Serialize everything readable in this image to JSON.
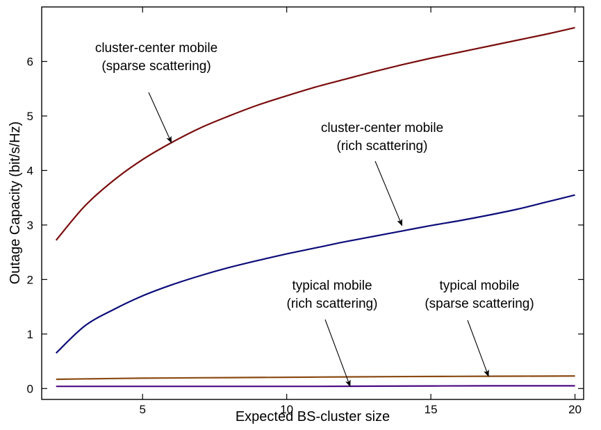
{
  "chart_data": {
    "type": "line",
    "title": "",
    "xlabel": "Expected BS-cluster size",
    "ylabel": "Outage Capacity (bit/s/Hz)",
    "xlim": [
      1.5,
      20.3
    ],
    "ylim": [
      -0.2,
      7.0
    ],
    "x_ticks": [
      5,
      10,
      15,
      20
    ],
    "y_ticks": [
      0,
      1,
      2,
      3,
      4,
      5,
      6
    ],
    "grid": false,
    "legend": "none",
    "series": [
      {
        "color": "#7a0c0c",
        "x": [
          2,
          3,
          4,
          5,
          6,
          7,
          8,
          9,
          10,
          11,
          12,
          13,
          14,
          15,
          16,
          17,
          18,
          19,
          20
        ],
        "y": [
          2.72,
          3.35,
          3.82,
          4.2,
          4.51,
          4.78,
          5.0,
          5.2,
          5.37,
          5.53,
          5.67,
          5.81,
          5.94,
          6.06,
          6.17,
          6.28,
          6.39,
          6.5,
          6.62
        ]
      },
      {
        "color": "#0c0c7a",
        "x": [
          2,
          3,
          4,
          5,
          6,
          7,
          8,
          9,
          10,
          11,
          12,
          13,
          14,
          15,
          16,
          17,
          18,
          19,
          20
        ],
        "y": [
          0.65,
          1.15,
          1.45,
          1.7,
          1.9,
          2.07,
          2.22,
          2.35,
          2.47,
          2.58,
          2.69,
          2.79,
          2.89,
          2.99,
          3.08,
          3.18,
          3.29,
          3.42,
          3.55
        ]
      },
      {
        "color": "#8a4a12",
        "x": [
          2,
          5,
          8,
          11,
          14,
          17,
          20
        ],
        "y": [
          0.17,
          0.19,
          0.2,
          0.21,
          0.22,
          0.225,
          0.23
        ]
      },
      {
        "color": "#4b0a82",
        "x": [
          2,
          5,
          8,
          11,
          14,
          17,
          20
        ],
        "y": [
          0.04,
          0.04,
          0.04,
          0.04,
          0.045,
          0.05,
          0.05
        ]
      }
    ],
    "annotations": [
      {
        "lines": [
          "cluster-center mobile",
          "(sparse scattering)"
        ],
        "arrow_to": [
          6,
          4.51
        ]
      },
      {
        "lines": [
          "cluster-center mobile",
          "(rich scattering)"
        ],
        "arrow_to": [
          14,
          2.99
        ]
      },
      {
        "lines": [
          "typical mobile",
          "(rich scattering)"
        ],
        "arrow_to": [
          12.2,
          0.04
        ]
      },
      {
        "lines": [
          "typical mobile",
          "(sparse scattering)"
        ],
        "arrow_to": [
          17,
          0.225
        ]
      }
    ]
  }
}
